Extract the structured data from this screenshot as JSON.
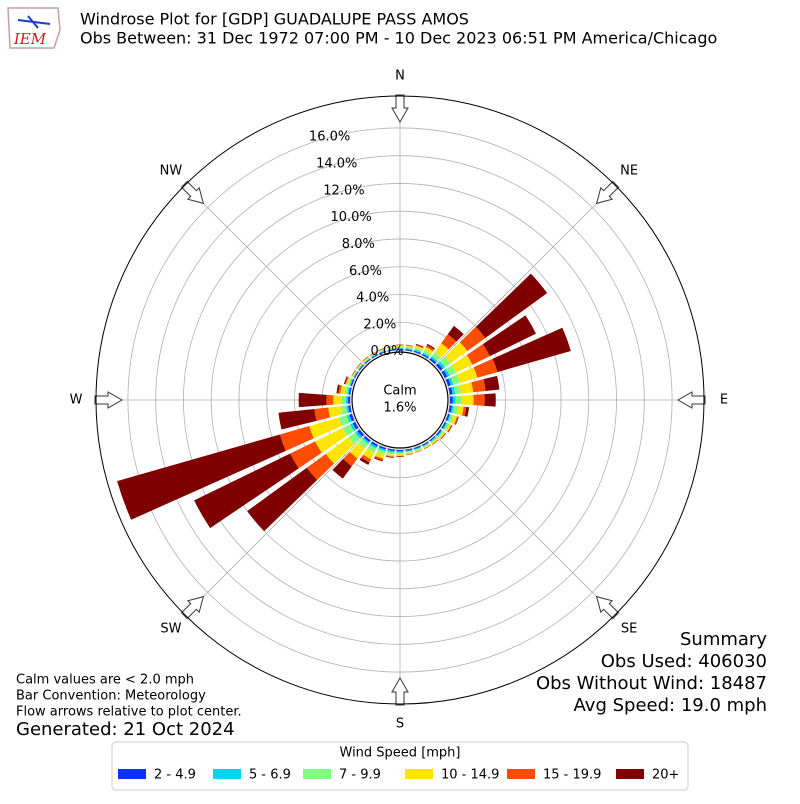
{
  "logo": "IEM",
  "chart_data": {
    "type": "windrose",
    "title": "Windrose Plot for [GDP] GUADALUPE PASS AMOS",
    "subtitle": "Obs Between: 31 Dec 1972 07:00 PM - 10 Dec 2023 06:51 PM America/Chicago",
    "x": [
      0,
      10,
      20,
      30,
      40,
      50,
      60,
      70,
      80,
      90,
      100,
      110,
      120,
      130,
      140,
      150,
      160,
      170,
      180,
      190,
      200,
      210,
      220,
      230,
      240,
      250,
      260,
      270,
      280,
      290,
      300,
      310,
      320,
      330,
      340,
      350
    ],
    "xticks": [
      {
        "value": 0,
        "label": "N"
      },
      {
        "value": 45,
        "label": "NE"
      },
      {
        "value": 90,
        "label": "E"
      },
      {
        "value": 135,
        "label": "SE"
      },
      {
        "value": 180,
        "label": "S"
      },
      {
        "value": 225,
        "label": "SW"
      },
      {
        "value": 270,
        "label": "W"
      },
      {
        "value": 315,
        "label": "NW"
      }
    ],
    "ylim": [
      0,
      18.3
    ],
    "yticks": [
      {
        "value": 0,
        "label": "0.0%"
      },
      {
        "value": 2,
        "label": "2.0%"
      },
      {
        "value": 4,
        "label": "4.0%"
      },
      {
        "value": 6,
        "label": "6.0%"
      },
      {
        "value": 8,
        "label": "8.0%"
      },
      {
        "value": 10,
        "label": "10.0%"
      },
      {
        "value": 12,
        "label": "12.0%"
      },
      {
        "value": 14,
        "label": "14.0%"
      },
      {
        "value": 16,
        "label": "16.0%"
      }
    ],
    "grid": true,
    "calm_label": "Calm",
    "calm_value": 1.6,
    "calm_value_label": "1.6%",
    "legend_title": "Wind Speed [mph]",
    "legend_position": "bottom",
    "series": [
      {
        "name": "2 - 4.9",
        "color": "#0a33ff",
        "values": [
          0.08,
          0.08,
          0.1,
          0.1,
          0.15,
          0.2,
          0.2,
          0.2,
          0.2,
          0.2,
          0.15,
          0.12,
          0.1,
          0.1,
          0.08,
          0.08,
          0.08,
          0.08,
          0.1,
          0.1,
          0.12,
          0.15,
          0.15,
          0.2,
          0.2,
          0.2,
          0.15,
          0.15,
          0.12,
          0.1,
          0.07,
          0.07,
          0.07,
          0.07,
          0.07,
          0.07
        ]
      },
      {
        "name": "5 - 6.9",
        "color": "#00d4f0",
        "values": [
          0.07,
          0.07,
          0.08,
          0.1,
          0.15,
          0.2,
          0.2,
          0.2,
          0.2,
          0.2,
          0.15,
          0.1,
          0.1,
          0.08,
          0.07,
          0.06,
          0.06,
          0.07,
          0.08,
          0.1,
          0.12,
          0.15,
          0.15,
          0.2,
          0.2,
          0.2,
          0.15,
          0.15,
          0.1,
          0.08,
          0.05,
          0.05,
          0.05,
          0.05,
          0.05,
          0.05
        ]
      },
      {
        "name": "7 - 9.9",
        "color": "#80ff80",
        "values": [
          0.1,
          0.1,
          0.15,
          0.2,
          0.35,
          0.5,
          0.5,
          0.5,
          0.4,
          0.4,
          0.3,
          0.2,
          0.15,
          0.12,
          0.1,
          0.09,
          0.09,
          0.1,
          0.12,
          0.15,
          0.25,
          0.35,
          0.4,
          0.6,
          0.6,
          0.6,
          0.4,
          0.3,
          0.2,
          0.12,
          0.07,
          0.07,
          0.07,
          0.07,
          0.07,
          0.07
        ]
      },
      {
        "name": "10 - 14.9",
        "color": "#ffe600",
        "values": [
          0.1,
          0.1,
          0.15,
          0.25,
          0.8,
          1.5,
          1.3,
          1.3,
          0.9,
          0.9,
          0.4,
          0.25,
          0.15,
          0.12,
          0.1,
          0.08,
          0.08,
          0.1,
          0.12,
          0.15,
          0.3,
          0.5,
          0.9,
          2.0,
          2.2,
          2.2,
          0.9,
          0.6,
          0.3,
          0.15,
          0.06,
          0.06,
          0.06,
          0.06,
          0.06,
          0.06
        ]
      },
      {
        "name": "15 - 19.9",
        "color": "#ff4d00",
        "values": [
          0.03,
          0.03,
          0.07,
          0.15,
          0.8,
          1.6,
          1.4,
          1.5,
          0.9,
          0.8,
          0.2,
          0.08,
          0.06,
          0.05,
          0.03,
          0.02,
          0.02,
          0.03,
          0.05,
          0.06,
          0.13,
          0.25,
          0.7,
          1.7,
          2.0,
          2.2,
          1.0,
          0.5,
          0.15,
          0.08,
          0.03,
          0.03,
          0.03,
          0.03,
          0.03,
          0.03
        ]
      },
      {
        "name": "20+",
        "color": "#800000",
        "values": [
          0.02,
          0.02,
          0.05,
          0.1,
          0.75,
          5.5,
          3.7,
          5.5,
          1.0,
          0.8,
          0.2,
          0.05,
          0.04,
          0.03,
          0.02,
          0.02,
          0.02,
          0.02,
          0.03,
          0.04,
          0.08,
          0.2,
          1.1,
          5.3,
          7.7,
          12.2,
          2.6,
          2.0,
          0.13,
          0.07,
          0.02,
          0.02,
          0.02,
          0.02,
          0.02,
          0.02
        ]
      }
    ]
  },
  "summary": [
    "Summary",
    "Obs Used: 406030",
    "Obs Without Wind: 18487",
    "Avg Speed: 19.0 mph"
  ],
  "notes": [
    "Calm values are < 2.0 mph",
    "Bar Convention: Meteorology",
    "Flow arrows relative to plot center."
  ],
  "generated": "Generated: 21 Oct 2024"
}
